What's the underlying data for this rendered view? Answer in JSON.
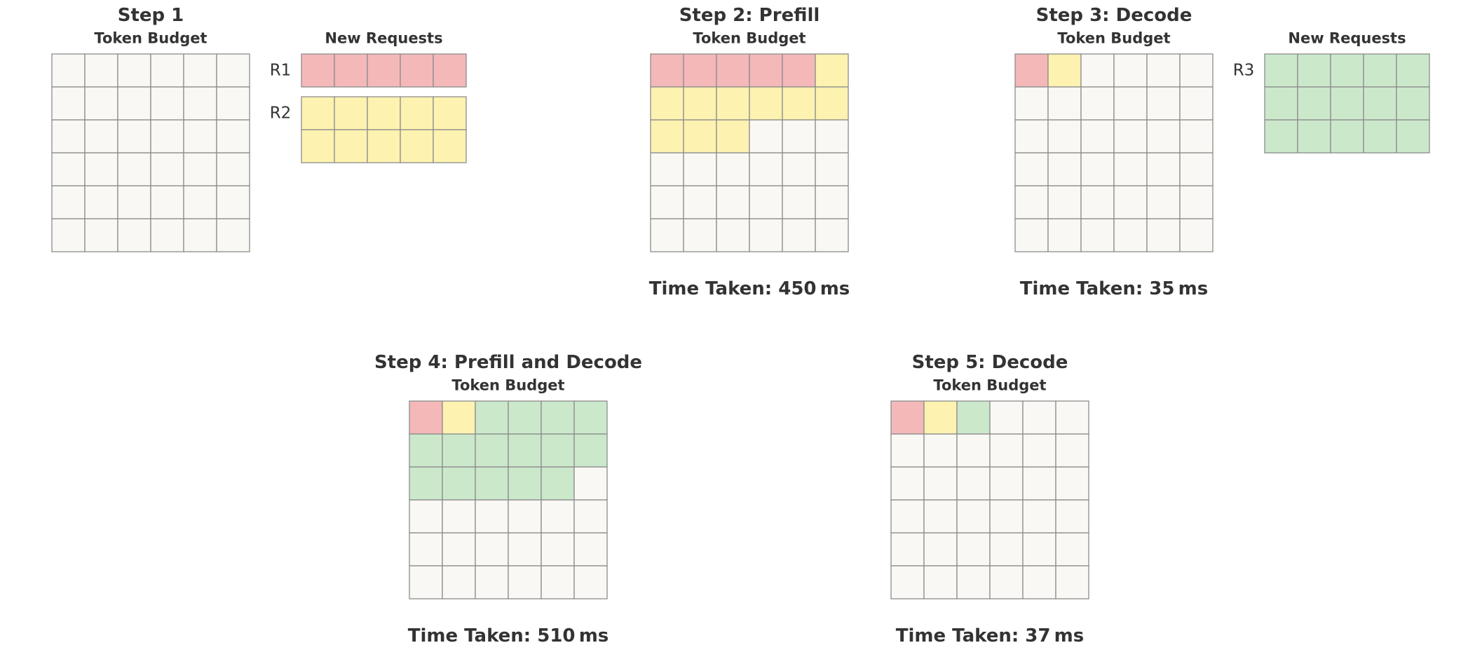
{
  "colors": {
    "empty": "#f9f8f4",
    "R1": "#f4b8b9",
    "R2": "#fef2b1",
    "R3": "#cbe8cb",
    "grid_line": "#8c8c8c",
    "text": "#333333"
  },
  "panels": [
    {
      "id": "step1",
      "title": "Step 1",
      "budget_title": "Token Budget",
      "budget_rows": [
        [
          null,
          null,
          null,
          null,
          null,
          null
        ],
        [
          null,
          null,
          null,
          null,
          null,
          null
        ],
        [
          null,
          null,
          null,
          null,
          null,
          null
        ],
        [
          null,
          null,
          null,
          null,
          null,
          null
        ],
        [
          null,
          null,
          null,
          null,
          null,
          null
        ],
        [
          null,
          null,
          null,
          null,
          null,
          null
        ]
      ],
      "time": "",
      "new_requests": {
        "title": "New Requests",
        "requests": [
          {
            "name": "R1",
            "color_key": "R1",
            "rows": 1,
            "cols": 5
          },
          {
            "name": "R2",
            "color_key": "R2",
            "rows": 2,
            "cols": 5
          }
        ]
      }
    },
    {
      "id": "step2",
      "title": "Step 2: Prefill",
      "budget_title": "Token Budget",
      "budget_rows": [
        [
          "R1",
          "R1",
          "R1",
          "R1",
          "R1",
          "R2"
        ],
        [
          "R2",
          "R2",
          "R2",
          "R2",
          "R2",
          "R2"
        ],
        [
          "R2",
          "R2",
          "R2",
          null,
          null,
          null
        ],
        [
          null,
          null,
          null,
          null,
          null,
          null
        ],
        [
          null,
          null,
          null,
          null,
          null,
          null
        ],
        [
          null,
          null,
          null,
          null,
          null,
          null
        ]
      ],
      "time": "Time Taken: 450 ms"
    },
    {
      "id": "step3",
      "title": "Step 3: Decode",
      "budget_title": "Token Budget",
      "budget_rows": [
        [
          "R1",
          "R2",
          null,
          null,
          null,
          null
        ],
        [
          null,
          null,
          null,
          null,
          null,
          null
        ],
        [
          null,
          null,
          null,
          null,
          null,
          null
        ],
        [
          null,
          null,
          null,
          null,
          null,
          null
        ],
        [
          null,
          null,
          null,
          null,
          null,
          null
        ],
        [
          null,
          null,
          null,
          null,
          null,
          null
        ]
      ],
      "time": "Time Taken: 35 ms",
      "new_requests": {
        "title": "New Requests",
        "requests": [
          {
            "name": "R3",
            "color_key": "R3",
            "rows": 3,
            "cols": 5
          }
        ]
      }
    },
    {
      "id": "step4",
      "title": "Step 4: Prefill and Decode",
      "budget_title": "Token Budget",
      "budget_rows": [
        [
          "R1",
          "R2",
          "R3",
          "R3",
          "R3",
          "R3"
        ],
        [
          "R3",
          "R3",
          "R3",
          "R3",
          "R3",
          "R3"
        ],
        [
          "R3",
          "R3",
          "R3",
          "R3",
          "R3",
          null
        ],
        [
          null,
          null,
          null,
          null,
          null,
          null
        ],
        [
          null,
          null,
          null,
          null,
          null,
          null
        ],
        [
          null,
          null,
          null,
          null,
          null,
          null
        ]
      ],
      "time": "Time Taken: 510 ms"
    },
    {
      "id": "step5",
      "title": "Step 5: Decode",
      "budget_title": "Token Budget",
      "budget_rows": [
        [
          "R1",
          "R2",
          "R3",
          null,
          null,
          null
        ],
        [
          null,
          null,
          null,
          null,
          null,
          null
        ],
        [
          null,
          null,
          null,
          null,
          null,
          null
        ],
        [
          null,
          null,
          null,
          null,
          null,
          null
        ],
        [
          null,
          null,
          null,
          null,
          null,
          null
        ],
        [
          null,
          null,
          null,
          null,
          null,
          null
        ]
      ],
      "time": "Time Taken: 37 ms"
    }
  ]
}
